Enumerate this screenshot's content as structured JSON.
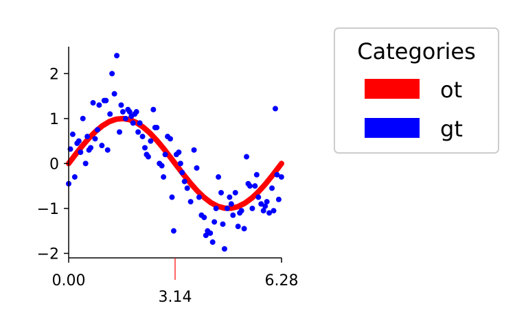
{
  "chart_data": {
    "type": "scatter",
    "title": "",
    "xlabel": "",
    "ylabel": "",
    "xlim": [
      0,
      6.2832
    ],
    "ylim": [
      -2.1,
      2.6
    ],
    "grid": false,
    "x_ticks": [
      {
        "value": 0,
        "label": "0.00"
      },
      {
        "value": 6.2832,
        "label": "6.28"
      }
    ],
    "x_minor_tick": {
      "value": 3.1416,
      "label": "3.14",
      "color": "#ff0000"
    },
    "y_ticks": [
      {
        "value": -2,
        "label": "−2"
      },
      {
        "value": -1,
        "label": "−1"
      },
      {
        "value": 0,
        "label": "0"
      },
      {
        "value": 1,
        "label": "1"
      },
      {
        "value": 2,
        "label": "2"
      }
    ],
    "legend": {
      "title": "Categories",
      "placement": "outside-right",
      "entries": [
        {
          "label": "ot",
          "color": "#ff0000"
        },
        {
          "label": "gt",
          "color": "#0000ff"
        }
      ]
    },
    "series": [
      {
        "name": "ot",
        "kind": "line",
        "color": "#ff0000",
        "x": [
          0,
          0.2,
          0.4,
          0.6,
          0.8,
          1.0,
          1.2,
          1.4,
          1.6,
          1.8,
          2.0,
          2.2,
          2.4,
          2.6,
          2.8,
          3.0,
          3.2,
          3.4,
          3.6,
          3.8,
          4.0,
          4.2,
          4.4,
          4.6,
          4.8,
          5.0,
          5.2,
          5.4,
          5.6,
          5.8,
          6.0,
          6.2832
        ],
        "y": [
          0,
          0.199,
          0.389,
          0.565,
          0.717,
          0.841,
          0.932,
          0.985,
          1.0,
          0.974,
          0.909,
          0.808,
          0.675,
          0.516,
          0.335,
          0.141,
          -0.058,
          -0.256,
          -0.443,
          -0.612,
          -0.757,
          -0.872,
          -0.952,
          -0.994,
          -0.996,
          -0.959,
          -0.883,
          -0.773,
          -0.631,
          -0.465,
          -0.279,
          0
        ]
      },
      {
        "name": "gt",
        "kind": "scatter",
        "color": "#0000ff",
        "x": [
          0.0,
          0.05,
          0.12,
          0.18,
          0.25,
          0.3,
          0.35,
          0.42,
          0.5,
          0.55,
          0.6,
          0.65,
          0.72,
          0.78,
          0.85,
          0.9,
          0.98,
          1.05,
          1.1,
          1.15,
          1.22,
          1.28,
          1.35,
          1.42,
          1.5,
          1.55,
          1.6,
          1.68,
          1.75,
          1.8,
          1.85,
          1.9,
          1.95,
          2.0,
          2.05,
          2.1,
          2.18,
          2.25,
          2.3,
          2.35,
          2.42,
          2.5,
          2.55,
          2.6,
          2.68,
          2.75,
          2.8,
          2.85,
          2.92,
          3.0,
          3.05,
          3.1,
          3.18,
          3.25,
          3.3,
          3.35,
          3.42,
          3.5,
          3.6,
          3.7,
          3.78,
          3.85,
          3.92,
          4.0,
          4.05,
          4.1,
          4.18,
          4.25,
          4.3,
          4.35,
          4.42,
          4.5,
          4.55,
          4.6,
          4.68,
          4.75,
          4.8,
          4.85,
          4.92,
          5.0,
          5.05,
          5.1,
          5.18,
          5.25,
          5.3,
          5.35,
          5.42,
          5.5,
          5.55,
          5.6,
          5.68,
          5.75,
          5.8,
          5.85,
          5.92,
          6.0,
          6.05,
          6.1,
          6.15,
          6.2,
          6.28
        ],
        "y": [
          -0.45,
          0.32,
          0.65,
          -0.3,
          0.45,
          0.5,
          0.25,
          1.0,
          0.0,
          0.6,
          0.3,
          0.35,
          1.35,
          0.55,
          0.75,
          1.3,
          0.4,
          1.4,
          1.4,
          0.3,
          1.1,
          2.0,
          1.55,
          2.4,
          0.7,
          1.3,
          1.15,
          1.0,
          1.2,
          1.15,
          1.05,
          0.9,
          1.1,
          1.15,
          0.7,
          0.9,
          0.6,
          0.35,
          0.2,
          0.15,
          0.5,
          1.2,
          0.8,
          0.8,
          0.0,
          -0.05,
          -0.3,
          0.2,
          0.6,
          0.55,
          -0.75,
          -1.5,
          0.2,
          0.25,
          0.0,
          -0.2,
          -0.4,
          -0.55,
          -0.85,
          0.3,
          -0.1,
          -0.75,
          -1.15,
          -1.2,
          -1.6,
          -1.5,
          -1.55,
          -1.75,
          -1.3,
          -1.0,
          -0.3,
          -0.65,
          -1.35,
          -1.9,
          -1.0,
          -0.75,
          -0.9,
          -1.15,
          -0.65,
          -1.4,
          -1.1,
          -1.05,
          -1.45,
          0.15,
          -0.45,
          -0.5,
          -1.0,
          -0.5,
          -0.25,
          -0.75,
          -0.9,
          -1.05,
          -0.95,
          -0.85,
          -1.1,
          -0.55,
          -1.05,
          1.22,
          -0.25,
          -0.8,
          -0.3
        ]
      }
    ]
  }
}
